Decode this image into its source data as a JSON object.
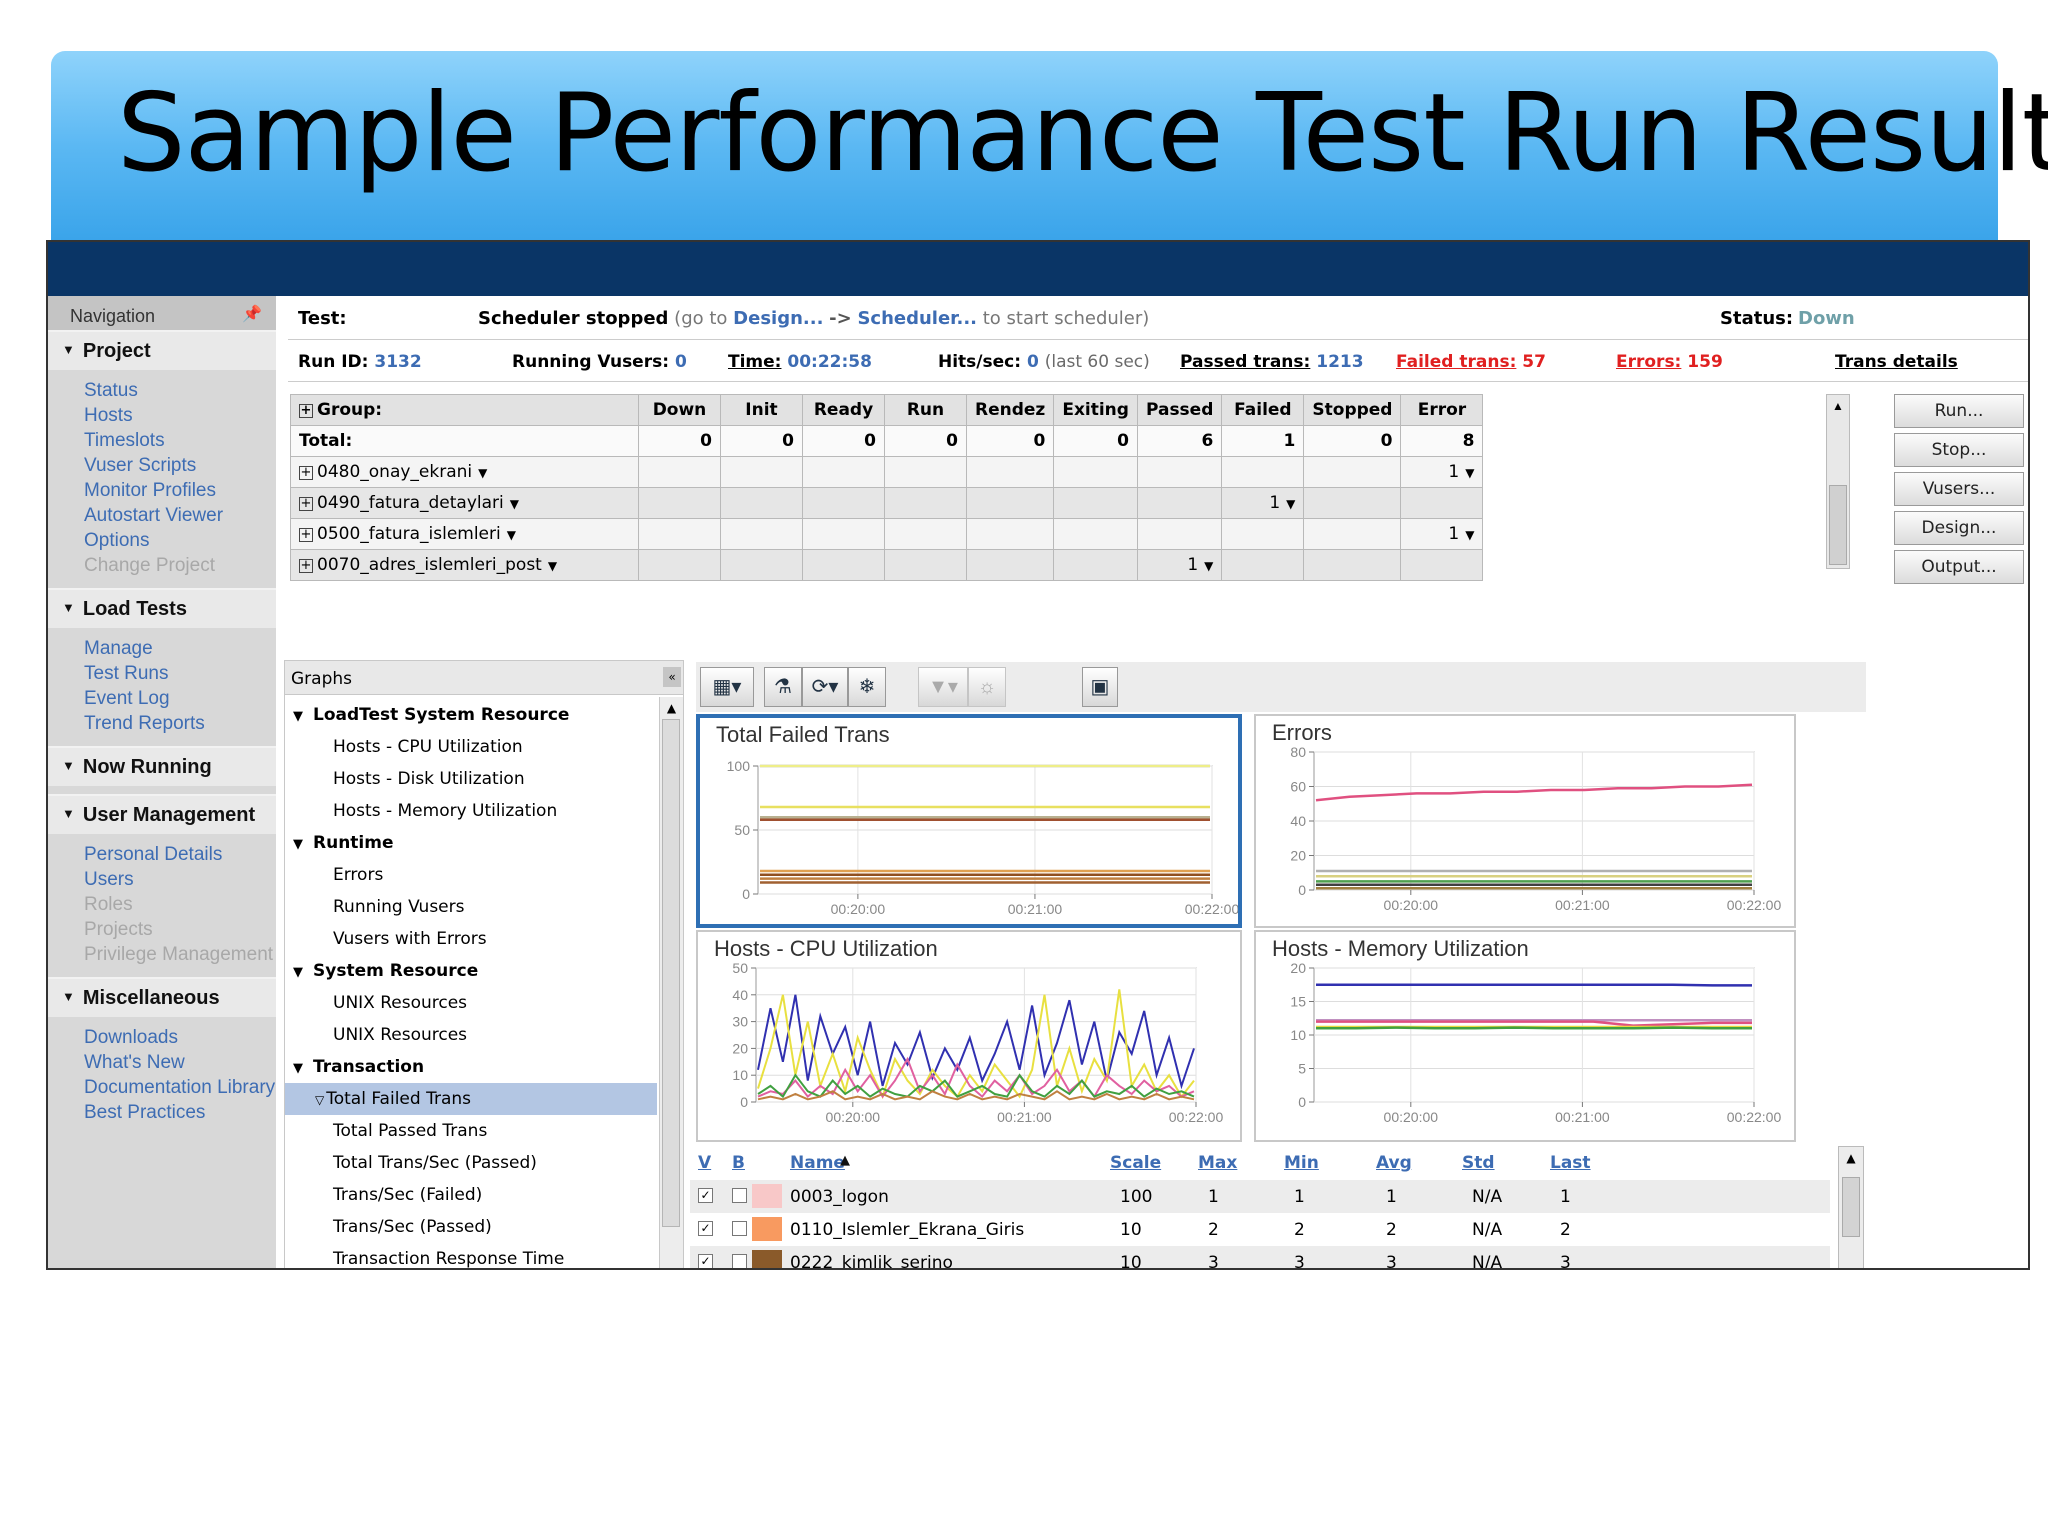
{
  "slide_title": "Sample Performance Test Run Result",
  "nav": {
    "header": "Navigation",
    "sections": [
      {
        "title": "Project",
        "items": [
          {
            "label": "Status",
            "enabled": true
          },
          {
            "label": "Hosts",
            "enabled": true
          },
          {
            "label": "Timeslots",
            "enabled": true
          },
          {
            "label": "Vuser Scripts",
            "enabled": true
          },
          {
            "label": "Monitor Profiles",
            "enabled": true
          },
          {
            "label": "Autostart Viewer",
            "enabled": true
          },
          {
            "label": "Options",
            "enabled": true
          },
          {
            "label": "Change Project",
            "enabled": false
          }
        ]
      },
      {
        "title": "Load Tests",
        "items": [
          {
            "label": "Manage",
            "enabled": true
          },
          {
            "label": "Test Runs",
            "enabled": true
          },
          {
            "label": "Event Log",
            "enabled": true
          },
          {
            "label": "Trend Reports",
            "enabled": true
          }
        ]
      },
      {
        "title": "Now Running",
        "items": []
      },
      {
        "title": "User Management",
        "items": [
          {
            "label": "Personal Details",
            "enabled": true
          },
          {
            "label": "Users",
            "enabled": true
          },
          {
            "label": "Roles",
            "enabled": false
          },
          {
            "label": "Projects",
            "enabled": false
          },
          {
            "label": "Privilege Management",
            "enabled": false
          }
        ]
      },
      {
        "title": "Miscellaneous",
        "items": [
          {
            "label": "Downloads",
            "enabled": true
          },
          {
            "label": "What's New",
            "enabled": true
          },
          {
            "label": "Documentation Library",
            "enabled": true
          },
          {
            "label": "Best Practices",
            "enabled": true
          }
        ]
      }
    ]
  },
  "test": {
    "label": "Test:",
    "state": "Scheduler stopped",
    "hint_prefix": "(go to",
    "hint_design": "Design...",
    "hint_arrow": "->",
    "hint_scheduler": "Scheduler...",
    "hint_suffix": "to start scheduler)",
    "status_label": "Status:",
    "status_value": "Down"
  },
  "run": {
    "id_label": "Run ID:",
    "id_value": "3132",
    "vusers_label": "Running Vusers:",
    "vusers_value": "0",
    "time_label": "Time:",
    "time_value": "00:22:58",
    "hits_label": "Hits/sec:",
    "hits_value": "0",
    "hits_note": "(last 60 sec)",
    "passed_label": "Passed trans:",
    "passed_value": "1213",
    "failed_label": "Failed trans:",
    "failed_value": "57",
    "errors_label": "Errors:",
    "errors_value": "159",
    "details_link": "Trans details"
  },
  "group_table": {
    "columns": [
      "Group:",
      "Down",
      "Init",
      "Ready",
      "Run",
      "Rendez",
      "Exiting",
      "Passed",
      "Failed",
      "Stopped",
      "Error"
    ],
    "total_label": "Total:",
    "total_values": [
      "0",
      "0",
      "0",
      "0",
      "0",
      "0",
      "6",
      "1",
      "0",
      "8"
    ],
    "rows": [
      {
        "name": "0480_onay_ekrani",
        "values": [
          "",
          "",
          "",
          "",
          "",
          "",
          "",
          "",
          "",
          "1"
        ]
      },
      {
        "name": "0490_fatura_detaylari",
        "values": [
          "",
          "",
          "",
          "",
          "",
          "",
          "",
          "1",
          "",
          ""
        ]
      },
      {
        "name": "0500_fatura_islemleri",
        "values": [
          "",
          "",
          "",
          "",
          "",
          "",
          "",
          "",
          "",
          "1"
        ]
      },
      {
        "name": "0070_adres_islemleri_post",
        "values": [
          "",
          "",
          "",
          "",
          "",
          "",
          "1",
          "",
          "",
          ""
        ]
      }
    ]
  },
  "buttons": [
    "Run...",
    "Stop...",
    "Vusers...",
    "Design...",
    "Output..."
  ],
  "graph_tree": {
    "header": "Graphs",
    "nodes": [
      {
        "label": "LoadTest System Resource",
        "type": "cat"
      },
      {
        "label": "Hosts - CPU Utilization",
        "type": "leaf"
      },
      {
        "label": "Hosts - Disk Utilization",
        "type": "leaf"
      },
      {
        "label": "Hosts - Memory Utilization",
        "type": "leaf"
      },
      {
        "label": "Runtime",
        "type": "cat"
      },
      {
        "label": "Errors",
        "type": "leaf"
      },
      {
        "label": "Running Vusers",
        "type": "leaf"
      },
      {
        "label": "Vusers with Errors",
        "type": "leaf"
      },
      {
        "label": "System Resource",
        "type": "cat"
      },
      {
        "label": "UNIX Resources",
        "type": "leaf"
      },
      {
        "label": "UNIX Resources",
        "type": "leaf"
      },
      {
        "label": "Transaction",
        "type": "cat"
      },
      {
        "label": "Total Failed Trans",
        "type": "sel"
      },
      {
        "label": "Total Passed Trans",
        "type": "leaf"
      },
      {
        "label": "Total Trans/Sec (Passed)",
        "type": "leaf"
      },
      {
        "label": "Trans/Sec (Failed)",
        "type": "leaf"
      },
      {
        "label": "Trans/Sec (Passed)",
        "type": "leaf"
      },
      {
        "label": "Transaction Response Time",
        "type": "leaf"
      }
    ]
  },
  "toolbar_icons": [
    "layout-icon",
    "filter-icon",
    "refresh-icon",
    "freeze-icon",
    "funnel-icon",
    "zoom-icon",
    "fit-icon"
  ],
  "chart_data": [
    {
      "type": "line",
      "title": "Total Failed Trans",
      "x_ticks": [
        "00:20:00",
        "00:21:00",
        "00:22:00"
      ],
      "ylim": [
        0,
        100
      ],
      "y_ticks": [
        "0",
        "50",
        "100"
      ],
      "series": [
        {
          "color": "#9999ee",
          "values": [
            100,
            100,
            100,
            100,
            100,
            100
          ]
        },
        {
          "color": "#eeee88",
          "values": [
            100,
            100,
            100,
            100,
            100,
            100
          ]
        },
        {
          "color": "#e8e060",
          "values": [
            68,
            68,
            68,
            68,
            68,
            68
          ]
        },
        {
          "color": "#b8b090",
          "values": [
            60,
            60,
            60,
            60,
            60,
            60
          ]
        },
        {
          "color": "#a05030",
          "values": [
            58,
            58,
            58,
            58,
            58,
            58
          ]
        },
        {
          "color": "#e0a050",
          "values": [
            18,
            18,
            18,
            18,
            18,
            18
          ]
        },
        {
          "color": "#905020",
          "values": [
            15,
            15,
            15,
            15,
            15,
            15
          ]
        },
        {
          "color": "#c08040",
          "values": [
            12,
            12,
            12,
            12,
            12,
            12
          ]
        },
        {
          "color": "#a06030",
          "values": [
            9,
            9,
            9,
            9,
            9,
            9
          ]
        }
      ]
    },
    {
      "type": "line",
      "title": "Errors",
      "x_ticks": [
        "00:20:00",
        "00:21:00",
        "00:22:00"
      ],
      "ylim": [
        0,
        80
      ],
      "y_ticks": [
        "0",
        "20",
        "40",
        "60",
        "80"
      ],
      "series": [
        {
          "color": "#e05080",
          "values": [
            52,
            54,
            55,
            56,
            56,
            57,
            57,
            58,
            58,
            59,
            59,
            60,
            60,
            61
          ]
        },
        {
          "color": "#b0b0b0",
          "values": [
            11,
            11,
            11,
            11,
            11,
            11,
            11,
            11,
            11,
            11,
            11,
            11,
            11,
            11
          ]
        },
        {
          "color": "#d8d080",
          "values": [
            8,
            8,
            8,
            8,
            8,
            8,
            8,
            8,
            8,
            8,
            8,
            8,
            8,
            8
          ]
        },
        {
          "color": "#50a050",
          "values": [
            5,
            5,
            5,
            5,
            5,
            5,
            5,
            5,
            5,
            5,
            5,
            5,
            5,
            5
          ]
        },
        {
          "color": "#404040",
          "values": [
            3,
            3,
            3,
            3,
            3,
            3,
            3,
            3,
            3,
            3,
            3,
            3,
            3,
            3
          ]
        },
        {
          "color": "#a08040",
          "values": [
            1,
            1,
            1,
            1,
            1,
            1,
            1,
            1,
            1,
            1,
            1,
            1,
            1,
            1
          ]
        }
      ]
    },
    {
      "type": "line",
      "title": "Hosts - CPU Utilization",
      "x_ticks": [
        "00:20:00",
        "00:21:00",
        "00:22:00"
      ],
      "ylim": [
        0,
        50
      ],
      "y_ticks": [
        "0",
        "10",
        "20",
        "30",
        "40",
        "50"
      ],
      "series": [
        {
          "color": "#3030b0",
          "values": [
            12,
            35,
            15,
            40,
            8,
            32,
            18,
            28,
            10,
            30,
            6,
            22,
            14,
            26,
            9,
            20,
            12,
            24,
            8,
            18,
            30,
            12,
            36,
            10,
            22,
            38,
            14,
            30,
            8,
            26,
            18,
            34,
            10,
            24,
            6,
            20
          ]
        },
        {
          "color": "#e8e040",
          "values": [
            5,
            20,
            40,
            10,
            30,
            6,
            18,
            4,
            24,
            12,
            2,
            16,
            8,
            3,
            12,
            6,
            2,
            10,
            4,
            14,
            8,
            2,
            12,
            40,
            6,
            20,
            4,
            16,
            8,
            42,
            6,
            14,
            4,
            10,
            2,
            8
          ]
        },
        {
          "color": "#e060a0",
          "values": [
            2,
            4,
            3,
            8,
            2,
            6,
            3,
            12,
            4,
            10,
            2,
            8,
            16,
            4,
            10,
            3,
            14,
            6,
            2,
            8,
            4,
            10,
            3,
            6,
            12,
            4,
            8,
            2,
            10,
            6,
            3,
            8,
            4,
            6,
            2,
            4
          ]
        },
        {
          "color": "#40a040",
          "values": [
            3,
            6,
            2,
            10,
            4,
            2,
            8,
            3,
            6,
            2,
            5,
            3,
            2,
            6,
            4,
            8,
            2,
            4,
            6,
            3,
            2,
            10,
            4,
            2,
            6,
            3,
            8,
            2,
            4,
            3,
            6,
            2,
            5,
            3,
            4,
            2
          ]
        },
        {
          "color": "#c08040",
          "values": [
            1,
            2,
            1,
            3,
            1,
            2,
            4,
            1,
            2,
            1,
            3,
            1,
            2,
            1,
            4,
            2,
            1,
            3,
            1,
            2,
            1,
            3,
            2,
            1,
            4,
            1,
            2,
            1,
            3,
            1,
            2,
            1,
            3,
            1,
            2,
            1
          ]
        }
      ]
    },
    {
      "type": "line",
      "title": "Hosts - Memory Utilization",
      "x_ticks": [
        "00:20:00",
        "00:21:00",
        "00:22:00"
      ],
      "ylim": [
        0,
        20
      ],
      "y_ticks": [
        "0",
        "5",
        "10",
        "15",
        "20"
      ],
      "series": [
        {
          "color": "#3030b0",
          "values": [
            17.5,
            17.5,
            17.5,
            17.5,
            17.5,
            17.5,
            17.5,
            17.5,
            17.5,
            17.5,
            17.4,
            17.4
          ]
        },
        {
          "color": "#c090c0",
          "values": [
            12.2,
            12.2,
            12.2,
            12.2,
            12.2,
            12.2,
            12.2,
            12.2,
            12.2,
            12.2,
            12.2,
            12.2
          ]
        },
        {
          "color": "#e05080",
          "values": [
            12.0,
            12.0,
            12.0,
            12.0,
            12.0,
            12.0,
            12.0,
            12.0,
            11.4,
            11.6,
            11.8,
            11.8
          ]
        },
        {
          "color": "#e8d840",
          "values": [
            11.2,
            11.2,
            11.2,
            11.2,
            11.2,
            11.2,
            11.2,
            11.2,
            11.2,
            11.2,
            11.2,
            11.2
          ]
        },
        {
          "color": "#40a040",
          "values": [
            11.0,
            11.0,
            11.1,
            11.0,
            11.0,
            11.1,
            11.0,
            11.0,
            11.0,
            11.1,
            11.0,
            11.0
          ]
        }
      ]
    }
  ],
  "legend": {
    "columns": [
      "V",
      "B",
      "Name",
      "Scale",
      "Max",
      "Min",
      "Avg",
      "Std",
      "Last"
    ],
    "rows": [
      {
        "color": "#f8c8c8",
        "name": "0003_logon",
        "scale": "100",
        "max": "1",
        "min": "1",
        "avg": "1",
        "std": "N/A",
        "last": "1"
      },
      {
        "color": "#f89a60",
        "name": "0110_Islemler_Ekrana_Giris",
        "scale": "10",
        "max": "2",
        "min": "2",
        "avg": "2",
        "std": "N/A",
        "last": "2"
      },
      {
        "color": "#8a5a2a",
        "name": "0222_kimlik_serino",
        "scale": "10",
        "max": "3",
        "min": "3",
        "avg": "3",
        "std": "N/A",
        "last": "3"
      }
    ]
  }
}
